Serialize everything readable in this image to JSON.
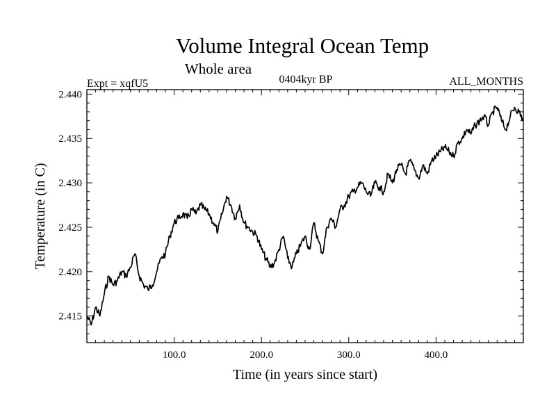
{
  "chart_data": {
    "type": "line",
    "title": "Volume Integral Ocean Temp",
    "subtitle": "Whole area",
    "left_label": "Expt = xqfU5",
    "center_label": "0404kyr BP",
    "right_label": "ALL_MONTHS",
    "xlabel": "Time (in years since start)",
    "ylabel": "Temperature (in C)",
    "xlim": [
      0,
      500
    ],
    "ylim": [
      2.412,
      2.4405
    ],
    "xticks": [
      100,
      200,
      300,
      400
    ],
    "xtick_labels": [
      "100.0",
      "200.0",
      "300.0",
      "400.0"
    ],
    "yticks": [
      2.415,
      2.42,
      2.425,
      2.43,
      2.435,
      2.44
    ],
    "ytick_labels": [
      "2.415",
      "2.420",
      "2.425",
      "2.430",
      "2.435",
      "2.440"
    ],
    "grid": false,
    "series": [
      {
        "name": "Volume integral ocean temperature",
        "x": [
          0,
          5,
          10,
          15,
          20,
          25,
          30,
          35,
          40,
          45,
          50,
          55,
          60,
          65,
          70,
          75,
          80,
          85,
          90,
          95,
          100,
          105,
          110,
          115,
          120,
          125,
          130,
          135,
          140,
          145,
          150,
          155,
          160,
          165,
          170,
          175,
          180,
          185,
          190,
          195,
          200,
          205,
          210,
          215,
          220,
          225,
          230,
          235,
          240,
          245,
          250,
          255,
          260,
          265,
          270,
          275,
          280,
          285,
          290,
          295,
          300,
          305,
          310,
          315,
          320,
          325,
          330,
          335,
          340,
          345,
          350,
          355,
          360,
          365,
          370,
          375,
          380,
          385,
          390,
          395,
          400,
          405,
          410,
          415,
          420,
          425,
          430,
          435,
          440,
          445,
          450,
          455,
          460,
          465,
          470,
          475,
          480,
          485,
          490,
          495,
          500
        ],
        "values": [
          2.415,
          2.414,
          2.416,
          2.415,
          2.4175,
          2.4195,
          2.4185,
          2.419,
          2.42,
          2.4195,
          2.4205,
          2.422,
          2.4195,
          2.4185,
          2.418,
          2.4185,
          2.42,
          2.4215,
          2.422,
          2.424,
          2.4255,
          2.426,
          2.4265,
          2.426,
          2.427,
          2.4265,
          2.4275,
          2.427,
          2.4265,
          2.4255,
          2.4245,
          2.4265,
          2.4285,
          2.4275,
          2.426,
          2.4275,
          2.4255,
          2.425,
          2.4245,
          2.424,
          2.4225,
          2.4215,
          2.4205,
          2.421,
          2.4225,
          2.424,
          2.4215,
          2.4205,
          2.422,
          2.423,
          2.424,
          2.4225,
          2.4255,
          2.4235,
          2.422,
          2.425,
          2.426,
          2.425,
          2.427,
          2.4275,
          2.4285,
          2.429,
          2.4295,
          2.43,
          2.429,
          2.4285,
          2.43,
          2.4295,
          2.429,
          2.431,
          2.43,
          2.4315,
          2.432,
          2.431,
          2.4325,
          2.4315,
          2.4305,
          2.432,
          2.431,
          2.4325,
          2.433,
          2.4335,
          2.434,
          2.4335,
          2.433,
          2.4345,
          2.435,
          2.436,
          2.4355,
          2.4365,
          2.437,
          2.4375,
          2.4365,
          2.438,
          2.4385,
          2.437,
          2.436,
          2.4375,
          2.4385,
          2.438,
          2.437
        ]
      }
    ]
  }
}
